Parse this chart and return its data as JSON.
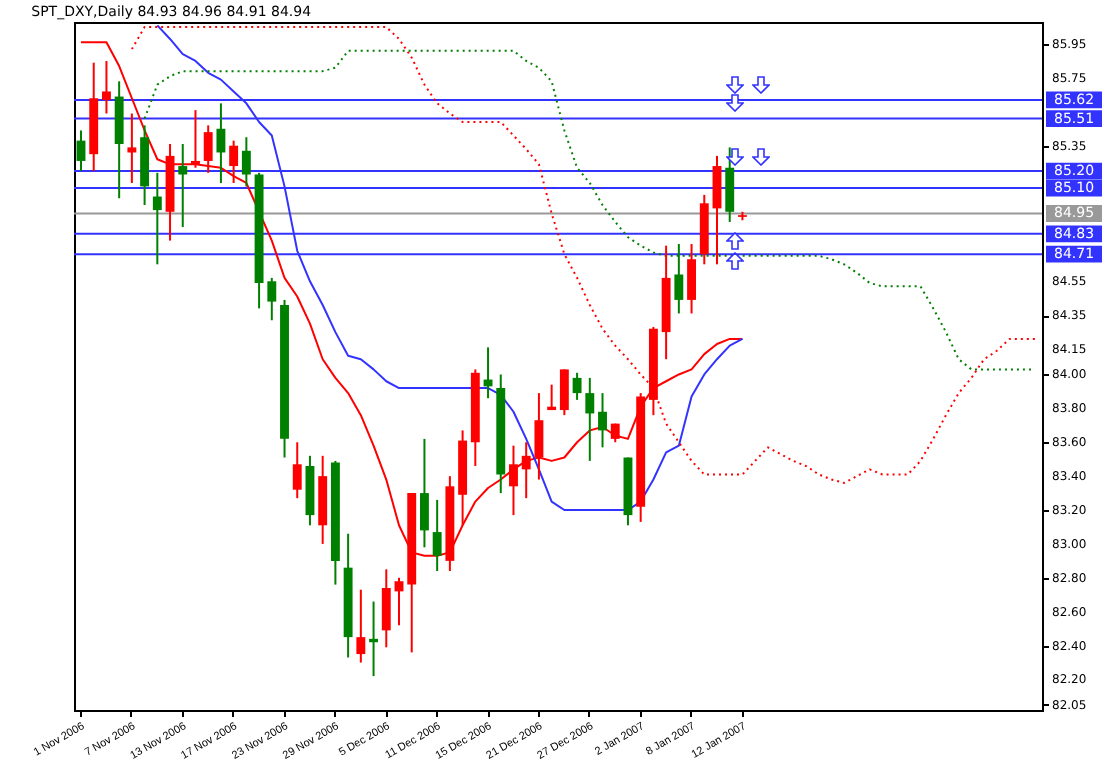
{
  "chart_data": {
    "type": "candlestick",
    "title": "SPT_DXY,Daily  84.93 84.96 84.91 84.94",
    "categories": [
      "1 Nov 2006",
      null,
      null,
      null,
      "7 Nov 2006",
      null,
      null,
      null,
      "13 Nov 2006",
      null,
      null,
      null,
      "17 Nov 2006",
      null,
      null,
      null,
      "23 Nov 2006",
      null,
      null,
      null,
      "29 Nov 2006",
      null,
      null,
      null,
      "5 Dec 2006",
      null,
      null,
      null,
      "11 Dec 2006",
      null,
      null,
      null,
      "15 Dec 2006",
      null,
      null,
      null,
      "21 Dec 2006",
      null,
      null,
      null,
      "27 Dec 2006",
      null,
      null,
      null,
      "2 Jan 2007",
      null,
      null,
      null,
      "8 Jan 2007",
      null,
      null,
      null,
      "12 Jan 2007",
      null,
      null,
      null,
      null,
      null,
      null,
      null,
      null,
      null,
      null,
      null,
      null,
      null,
      null,
      null,
      null,
      null,
      null,
      null,
      null,
      null,
      null,
      null
    ],
    "ohlc": [
      [
        85.38,
        85.44,
        85.2,
        85.26
      ],
      [
        85.3,
        85.84,
        85.2,
        85.63
      ],
      [
        85.62,
        85.85,
        85.54,
        85.67
      ],
      [
        85.64,
        85.73,
        85.04,
        85.36
      ],
      [
        85.31,
        85.54,
        85.13,
        85.34
      ],
      [
        85.4,
        85.47,
        85.0,
        85.11
      ],
      [
        85.05,
        85.19,
        84.65,
        84.97
      ],
      [
        84.96,
        85.36,
        84.79,
        85.29
      ],
      [
        85.23,
        85.36,
        84.87,
        85.18
      ],
      [
        85.24,
        85.56,
        85.22,
        85.26
      ],
      [
        85.26,
        85.47,
        85.19,
        85.43
      ],
      [
        85.45,
        85.6,
        85.13,
        85.31
      ],
      [
        85.23,
        85.38,
        85.13,
        85.35
      ],
      [
        85.32,
        85.4,
        85.11,
        85.18
      ],
      [
        85.18,
        85.19,
        84.39,
        84.54
      ],
      [
        84.55,
        84.57,
        84.32,
        84.43
      ],
      [
        84.41,
        84.44,
        83.51,
        83.62
      ],
      [
        83.32,
        83.6,
        83.27,
        83.47
      ],
      [
        83.46,
        83.52,
        83.11,
        83.17
      ],
      [
        83.11,
        83.52,
        83.0,
        83.4
      ],
      [
        83.48,
        83.49,
        82.76,
        82.9
      ],
      [
        82.86,
        83.06,
        82.33,
        82.45
      ],
      [
        82.35,
        82.73,
        82.3,
        82.45
      ],
      [
        82.44,
        82.66,
        82.22,
        82.42
      ],
      [
        82.49,
        82.85,
        82.39,
        82.74
      ],
      [
        82.72,
        82.8,
        82.52,
        82.78
      ],
      [
        82.76,
        83.3,
        82.36,
        83.3
      ],
      [
        83.3,
        83.62,
        82.98,
        83.08
      ],
      [
        83.07,
        83.26,
        82.84,
        82.93
      ],
      [
        82.9,
        83.4,
        82.84,
        83.34
      ],
      [
        83.29,
        83.67,
        83.11,
        83.61
      ],
      [
        83.6,
        84.03,
        83.46,
        84.01
      ],
      [
        83.97,
        84.16,
        83.86,
        83.93
      ],
      [
        83.92,
        84.0,
        83.3,
        83.41
      ],
      [
        83.34,
        83.58,
        83.17,
        83.47
      ],
      [
        83.44,
        83.6,
        83.27,
        83.52
      ],
      [
        83.51,
        83.89,
        83.38,
        83.73
      ],
      [
        83.79,
        83.94,
        83.79,
        83.81
      ],
      [
        83.79,
        84.03,
        83.76,
        84.03
      ],
      [
        83.98,
        84.01,
        83.85,
        83.89
      ],
      [
        83.89,
        83.98,
        83.49,
        83.77
      ],
      [
        83.78,
        83.89,
        83.57,
        83.67
      ],
      [
        83.62,
        83.71,
        83.6,
        83.71
      ],
      [
        83.51,
        83.51,
        83.11,
        83.17
      ],
      [
        83.22,
        83.89,
        83.13,
        83.87
      ],
      [
        83.85,
        84.28,
        83.76,
        84.27
      ],
      [
        84.25,
        84.76,
        84.09,
        84.57
      ],
      [
        84.59,
        84.77,
        84.36,
        84.44
      ],
      [
        84.44,
        84.77,
        84.36,
        84.68
      ],
      [
        84.71,
        85.06,
        84.65,
        85.01
      ],
      [
        84.98,
        85.29,
        84.65,
        85.23
      ],
      [
        85.22,
        85.34,
        84.9,
        84.96
      ],
      [
        84.93,
        84.96,
        84.91,
        84.94
      ],
      null,
      null,
      null,
      null,
      null,
      null,
      null,
      null,
      null,
      null,
      null,
      null,
      null,
      null,
      null,
      null,
      null,
      null,
      null,
      null,
      null,
      null,
      null
    ],
    "colors": [
      "#008000",
      "#ff0000",
      "#ff0000",
      "#008000",
      "#ff0000",
      "#008000",
      "#008000",
      "#ff0000",
      "#008000",
      "#ff0000",
      "#ff0000",
      "#008000",
      "#ff0000",
      "#008000",
      "#008000",
      "#008000",
      "#008000",
      "#ff0000",
      "#008000",
      "#ff0000",
      "#008000",
      "#008000",
      "#ff0000",
      "#008000",
      "#ff0000",
      "#ff0000",
      "#ff0000",
      "#008000",
      "#008000",
      "#ff0000",
      "#ff0000",
      "#ff0000",
      "#008000",
      "#008000",
      "#ff0000",
      "#ff0000",
      "#ff0000",
      "#ff0000",
      "#ff0000",
      "#008000",
      "#008000",
      "#008000",
      "#ff0000",
      "#008000",
      "#ff0000",
      "#ff0000",
      "#ff0000",
      "#008000",
      "#ff0000",
      "#ff0000",
      "#ff0000",
      "#008000",
      "#ff0000",
      null,
      null,
      null,
      null,
      null,
      null,
      null,
      null,
      null,
      null,
      null,
      null,
      null,
      null,
      null,
      null,
      null,
      null,
      null,
      null,
      null,
      null,
      null
    ],
    "series": [
      {
        "type": "line",
        "color": "#ff0000",
        "line_style": "solid",
        "values": [
          85.96,
          85.96,
          85.96,
          85.82,
          85.63,
          85.44,
          85.27,
          85.24,
          85.24,
          85.24,
          85.23,
          85.22,
          85.17,
          85.13,
          null,
          84.79,
          84.57,
          84.46,
          84.3,
          84.09,
          83.98,
          83.89,
          83.76,
          83.58,
          83.38,
          83.11,
          82.95,
          82.93,
          82.93,
          82.95,
          83.11,
          83.25,
          83.33,
          83.38,
          83.44,
          83.49,
          83.51,
          83.49,
          83.51,
          83.6,
          83.67,
          83.69,
          83.64,
          83.62,
          83.81,
          83.92,
          83.96,
          84.0,
          84.03,
          84.12,
          84.18,
          84.21,
          84.21,
          null,
          null,
          null,
          null,
          null,
          null,
          null,
          null,
          null,
          null,
          null,
          null,
          null,
          null,
          null,
          null,
          null,
          null,
          null,
          null,
          null,
          null,
          null
        ]
      },
      {
        "type": "line",
        "color": "#3333ff",
        "line_style": "solid",
        "values": [
          null,
          null,
          null,
          null,
          null,
          null,
          86.06,
          85.98,
          85.89,
          85.85,
          85.78,
          85.74,
          85.67,
          85.6,
          85.49,
          85.41,
          85.11,
          84.73,
          84.55,
          84.41,
          84.25,
          84.11,
          84.09,
          84.03,
          83.96,
          83.92,
          83.92,
          83.92,
          83.92,
          83.92,
          83.92,
          83.92,
          83.92,
          83.88,
          83.78,
          83.62,
          83.44,
          83.25,
          83.2,
          83.2,
          83.2,
          83.2,
          83.2,
          83.2,
          83.25,
          83.38,
          83.54,
          83.58,
          83.87,
          84.0,
          84.09,
          84.17,
          84.21,
          null,
          null,
          null,
          null,
          null,
          null,
          null,
          null,
          null,
          null,
          null,
          null,
          null,
          null,
          null,
          null,
          null,
          null,
          null,
          null,
          null,
          null,
          null
        ]
      },
      {
        "type": "line",
        "color": "#008000",
        "line_style": "dotted",
        "values": [
          null,
          null,
          null,
          null,
          null,
          85.51,
          85.71,
          85.76,
          85.79,
          85.79,
          85.79,
          85.79,
          85.79,
          85.79,
          85.79,
          85.79,
          85.79,
          85.79,
          85.79,
          85.79,
          85.81,
          85.91,
          85.91,
          85.91,
          85.91,
          85.91,
          85.91,
          85.91,
          85.91,
          85.91,
          85.91,
          85.91,
          85.91,
          85.91,
          85.91,
          85.85,
          85.81,
          85.73,
          85.44,
          85.22,
          85.13,
          85.0,
          84.9,
          84.81,
          84.76,
          84.72,
          84.7,
          84.7,
          84.7,
          84.7,
          84.7,
          84.7,
          84.7,
          84.7,
          84.7,
          84.7,
          84.7,
          84.7,
          84.7,
          84.68,
          84.65,
          84.6,
          84.54,
          84.52,
          84.52,
          84.52,
          84.52,
          84.39,
          84.25,
          84.09,
          84.03,
          84.03,
          84.03,
          84.03,
          84.03,
          84.03
        ]
      },
      {
        "type": "line",
        "color": "#ff0000",
        "line_style": "dotted",
        "values": [
          null,
          null,
          null,
          null,
          85.92,
          86.05,
          86.05,
          86.05,
          86.05,
          86.05,
          86.05,
          86.05,
          86.05,
          86.05,
          86.05,
          86.05,
          86.05,
          86.05,
          86.05,
          86.05,
          86.05,
          86.05,
          86.05,
          86.05,
          86.05,
          85.98,
          85.87,
          85.71,
          85.6,
          85.54,
          85.49,
          85.49,
          85.49,
          85.49,
          85.41,
          85.33,
          85.24,
          84.95,
          84.71,
          84.57,
          84.41,
          84.27,
          84.17,
          84.09,
          84.0,
          83.92,
          83.71,
          83.6,
          83.49,
          83.41,
          83.41,
          83.41,
          83.41,
          83.49,
          83.57,
          83.53,
          83.49,
          83.46,
          83.41,
          83.38,
          83.36,
          83.4,
          83.44,
          83.41,
          83.41,
          83.41,
          83.49,
          83.62,
          83.76,
          83.89,
          83.98,
          84.09,
          84.14,
          84.21,
          84.21,
          84.21
        ]
      }
    ],
    "ylim": [
      82.02,
      86.08
    ],
    "yticks": [
      {
        "value": 85.95,
        "label": "85.95"
      },
      {
        "value": 85.75,
        "label": "85.75"
      },
      {
        "value": 85.35,
        "label": "85.35"
      },
      {
        "value": 84.55,
        "label": "84.55"
      },
      {
        "value": 84.35,
        "label": "84.35"
      },
      {
        "value": 84.15,
        "label": "84.15"
      },
      {
        "value": 84,
        "label": "84.00"
      },
      {
        "value": 83.8,
        "label": "83.80"
      },
      {
        "value": 83.6,
        "label": "83.60"
      },
      {
        "value": 83.4,
        "label": "83.40"
      },
      {
        "value": 83.2,
        "label": "83.20"
      },
      {
        "value": 83,
        "label": "83.00"
      },
      {
        "value": 82.8,
        "label": "82.80"
      },
      {
        "value": 82.6,
        "label": "82.60"
      },
      {
        "value": 82.4,
        "label": "82.40"
      },
      {
        "value": 82.2,
        "label": "82.20"
      },
      {
        "value": 82.05,
        "label": "82.05"
      }
    ],
    "ref_lines": [
      {
        "axis": "y",
        "value": 85.62,
        "label": "85.62",
        "color": "#3333ff"
      },
      {
        "axis": "y",
        "value": 85.51,
        "label": "85.51",
        "color": "#3333ff"
      },
      {
        "axis": "y",
        "value": 85.2,
        "label": "85.20",
        "color": "#3333ff"
      },
      {
        "axis": "y",
        "value": 85.1,
        "label": "85.10",
        "color": "#3333ff"
      },
      {
        "axis": "y",
        "value": 84.95,
        "label": "84.95",
        "color": "#999999"
      },
      {
        "axis": "y",
        "value": 84.83,
        "label": "84.83",
        "color": "#3333ff"
      },
      {
        "axis": "y",
        "value": 84.71,
        "label": "84.71",
        "color": "#3333ff"
      }
    ],
    "grid": false
  }
}
